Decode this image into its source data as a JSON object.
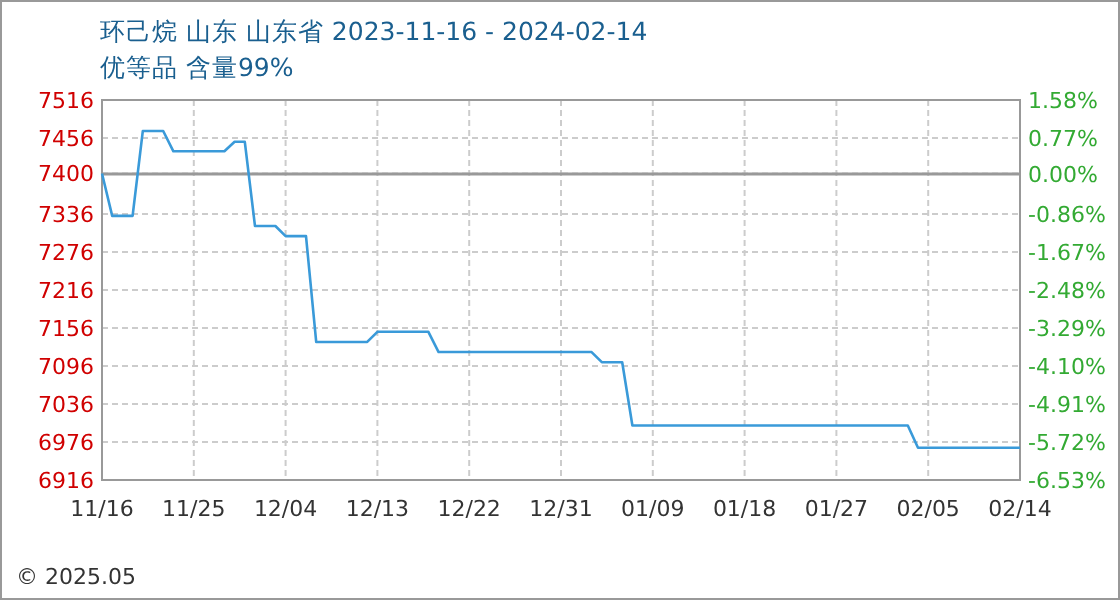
{
  "chart_data": {
    "type": "line",
    "title": "环己烷 山东 山东省 2023-11-16 - 2024-02-14",
    "subtitle": "优等品 含量99%",
    "x": [
      "2023-11-16",
      "2023-11-17",
      "2023-11-19",
      "2023-11-20",
      "2023-11-22",
      "2023-11-23",
      "2023-11-28",
      "2023-11-29",
      "2023-11-30",
      "2023-12-01",
      "2023-12-03",
      "2023-12-04",
      "2023-12-06",
      "2023-12-07",
      "2023-12-12",
      "2023-12-13",
      "2023-12-18",
      "2023-12-19",
      "2024-01-03",
      "2024-01-04",
      "2024-01-06",
      "2024-01-07",
      "2024-02-03",
      "2024-02-04",
      "2024-02-14"
    ],
    "series": [
      {
        "color": "#3a9ad9",
        "values": [
          7400,
          7333,
          7333,
          7467,
          7467,
          7435,
          7435,
          7450,
          7450,
          7317,
          7317,
          7301,
          7301,
          7134,
          7134,
          7150,
          7150,
          7118,
          7118,
          7102,
          7102,
          7002,
          7002,
          6967,
          6967
        ]
      }
    ],
    "xlim": [
      "2023-11-16",
      "2024-02-14"
    ],
    "xticks": [
      {
        "value": "2023-11-16",
        "label": "11/16"
      },
      {
        "value": "2023-11-25",
        "label": "11/25"
      },
      {
        "value": "2023-12-04",
        "label": "12/04"
      },
      {
        "value": "2023-12-13",
        "label": "12/13"
      },
      {
        "value": "2023-12-22",
        "label": "12/22"
      },
      {
        "value": "2023-12-31",
        "label": "12/31"
      },
      {
        "value": "2024-01-09",
        "label": "01/09"
      },
      {
        "value": "2024-01-18",
        "label": "01/18"
      },
      {
        "value": "2024-01-27",
        "label": "01/27"
      },
      {
        "value": "2024-02-05",
        "label": "02/05"
      },
      {
        "value": "2024-02-14",
        "label": "02/14"
      }
    ],
    "ylim": [
      6916,
      7516
    ],
    "yticks": [
      7516,
      7456,
      7400,
      7336,
      7276,
      7216,
      7156,
      7096,
      7036,
      6976,
      6916
    ],
    "y2lim": [
      -6.53,
      1.58
    ],
    "y2ticks": [
      {
        "value": 1.58,
        "label": "1.58%"
      },
      {
        "value": 0.77,
        "label": "0.77%"
      },
      {
        "value": 0,
        "label": "0.00%"
      },
      {
        "value": -0.86,
        "label": "-0.86%"
      },
      {
        "value": -1.67,
        "label": "-1.67%"
      },
      {
        "value": -2.48,
        "label": "-2.48%"
      },
      {
        "value": -3.29,
        "label": "-3.29%"
      },
      {
        "value": -4.1,
        "label": "-4.10%"
      },
      {
        "value": -4.91,
        "label": "-4.91%"
      },
      {
        "value": -5.72,
        "label": "-5.72%"
      },
      {
        "value": -6.53,
        "label": "-6.53%"
      }
    ],
    "ref_lines": [
      {
        "axis": "y2",
        "value": 0,
        "color": "#999999",
        "line_style": "solid"
      }
    ],
    "grid": true,
    "annotations": [
      "© 2025.05"
    ]
  }
}
